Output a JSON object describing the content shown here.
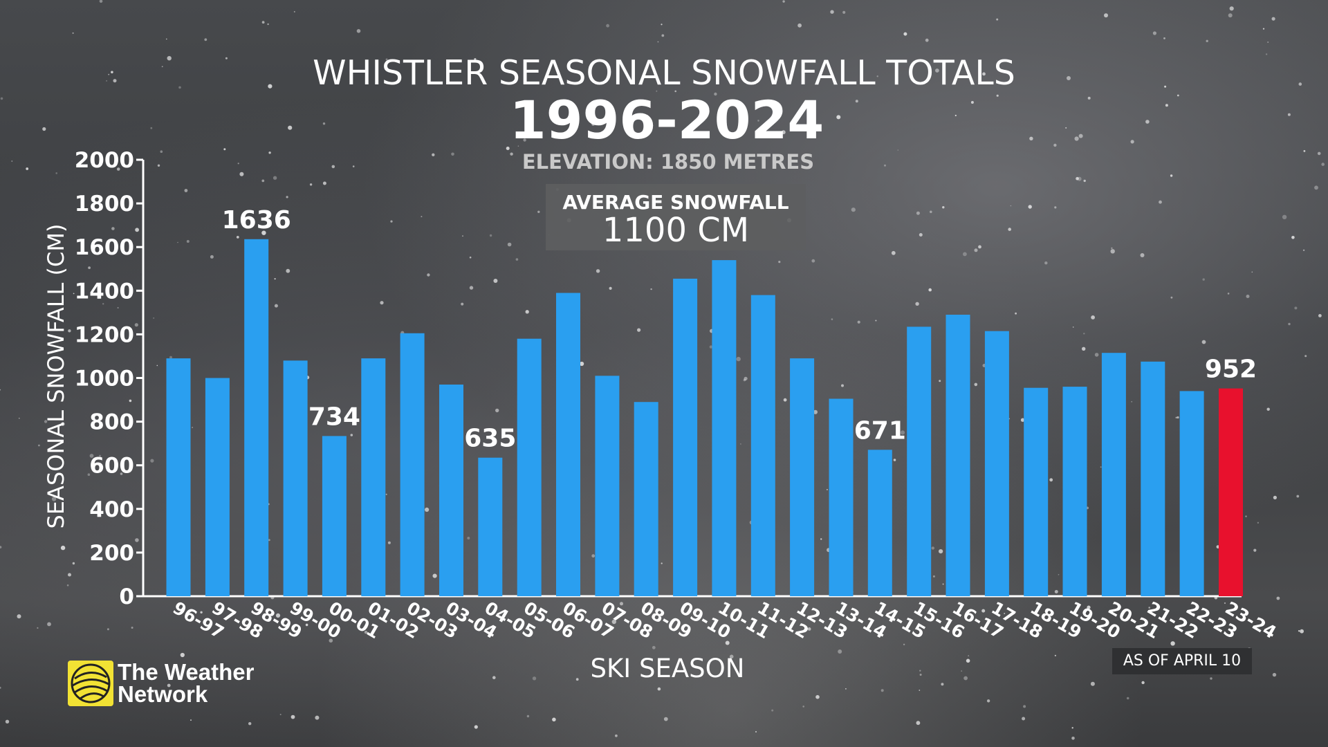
{
  "header": {
    "title": "WHISTLER SEASONAL SNOWFALL TOTALS",
    "years": "1996-2024",
    "elevation": "ELEVATION: 1850 METRES"
  },
  "average_box": {
    "label": "AVERAGE SNOWFALL",
    "value": "1100 CM"
  },
  "footer": {
    "as_of": "AS OF APRIL 10",
    "logo_line1": "The Weather",
    "logo_line2": "Network"
  },
  "colors": {
    "bar": "#2a9ff0",
    "highlight": "#e8112d",
    "text": "#ffffff"
  },
  "chart_data": {
    "type": "bar",
    "title": "WHISTLER SEASONAL SNOWFALL TOTALS",
    "subtitle": "1996-2024",
    "xlabel": "SKI SEASON",
    "ylabel": "SEASONAL SNOWFALL (CM)",
    "ylim": [
      0,
      2000
    ],
    "yticks": [
      0,
      200,
      400,
      600,
      800,
      1000,
      1200,
      1400,
      1600,
      1800,
      2000
    ],
    "categories": [
      "96-97",
      "97-98",
      "98-99",
      "99-00",
      "00-01",
      "01-02",
      "02-03",
      "03-04",
      "04-05",
      "05-06",
      "06-07",
      "07-08",
      "08-09",
      "09-10",
      "10-11",
      "11-12",
      "12-13",
      "13-14",
      "14-15",
      "15-16",
      "16-17",
      "17-18",
      "18-19",
      "19-20",
      "20-21",
      "21-22",
      "22-23",
      "23-24"
    ],
    "values": [
      1090,
      1000,
      1636,
      1080,
      734,
      1090,
      1205,
      970,
      635,
      1180,
      1390,
      1010,
      890,
      1455,
      1540,
      1380,
      1090,
      905,
      671,
      1235,
      1290,
      1215,
      955,
      960,
      1115,
      1075,
      940,
      952
    ],
    "labeled_values": [
      {
        "category": "98-99",
        "label": "1636"
      },
      {
        "category": "00-01",
        "label": "734"
      },
      {
        "category": "04-05",
        "label": "635"
      },
      {
        "category": "14-15",
        "label": "671"
      },
      {
        "category": "23-24",
        "label": "952"
      }
    ],
    "highlight_category": "23-24",
    "grid": false
  }
}
